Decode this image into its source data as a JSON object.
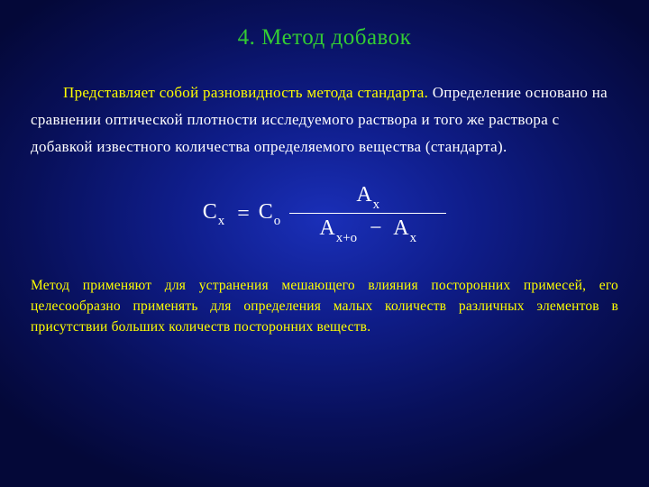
{
  "colors": {
    "title": "#33cc33",
    "body": "#ffffff",
    "highlight": "#ffff00",
    "bg_center": "#1a2fb8",
    "bg_edge": "#040838"
  },
  "title": "4. Метод добавок",
  "para1_a": "Представляет собой разновидность метода стандарта. ",
  "para1_b": "Определение основано на сравнении оптической плотности исследуемого раствора и того же раствора с добавкой известного количества определяемого вещества (стандарта).",
  "formula": {
    "C": "C",
    "A": "A",
    "eq": "=",
    "minus": "−",
    "sub_x": "x",
    "sub_o": "o",
    "sub_xo": "x+o"
  },
  "para2": "Метод применяют для устранения мешающего влияния посторонних примесей, его целесообразно применять для определения малых количеств различных элементов в присутствии больших количеств посторонних веществ."
}
